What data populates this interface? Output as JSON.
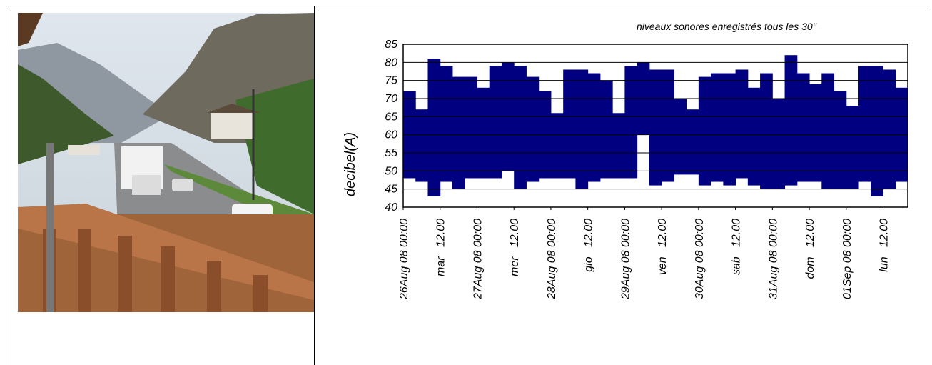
{
  "chart_data": {
    "type": "range_bar",
    "title": "niveaux sonores enregistrés tous les 30''",
    "y_label": "decibel(A)",
    "color": "#000080",
    "bins": [
      0,
      4,
      8,
      12,
      16,
      20,
      24,
      28,
      32,
      36,
      40,
      44,
      48,
      52,
      56,
      60,
      64,
      68,
      72,
      76,
      80,
      84,
      88,
      92,
      96,
      100,
      104,
      108,
      112,
      116,
      120,
      124,
      128,
      132,
      136,
      140,
      144,
      148,
      152,
      156,
      160,
      164
    ],
    "low": [
      48,
      47,
      43,
      47,
      45,
      48,
      48,
      48,
      50,
      45,
      47,
      48,
      48,
      48,
      45,
      47,
      48,
      48,
      48,
      60,
      46,
      47,
      49,
      49,
      46,
      47,
      46,
      48,
      46,
      45,
      45,
      46,
      47,
      47,
      45,
      45,
      45,
      47,
      43,
      45,
      47
    ],
    "high": [
      72,
      67,
      81,
      79,
      76,
      76,
      73,
      79,
      80,
      79,
      76,
      72,
      66,
      78,
      78,
      77,
      75,
      66,
      79,
      80,
      78,
      78,
      70,
      67,
      76,
      77,
      77,
      78,
      73,
      77,
      70,
      82,
      77,
      74,
      77,
      72,
      68,
      79,
      79,
      78,
      73
    ],
    "xlim": [
      0,
      164
    ],
    "xticks": [
      {
        "value": 0,
        "label": "26Aug 08 00:00"
      },
      {
        "value": 12,
        "label": "mar   12.00"
      },
      {
        "value": 24,
        "label": "27Aug 08 00:00"
      },
      {
        "value": 36,
        "label": "mer   12.00"
      },
      {
        "value": 48,
        "label": "28Aug 08 00:00"
      },
      {
        "value": 60,
        "label": "gio   12.00"
      },
      {
        "value": 72,
        "label": "29Aug 08 00:00"
      },
      {
        "value": 84,
        "label": "ven   12.00"
      },
      {
        "value": 96,
        "label": "30Aug 08 00:00"
      },
      {
        "value": 108,
        "label": "sab   12.00"
      },
      {
        "value": 120,
        "label": "31Aug 08 00:00"
      },
      {
        "value": 132,
        "label": "dom   12.00"
      },
      {
        "value": 144,
        "label": "01Sep 08 00:00"
      },
      {
        "value": 156,
        "label": "lun   12.00"
      }
    ],
    "ylim": [
      40,
      85
    ],
    "yticks": [
      40,
      45,
      50,
      55,
      60,
      65,
      70,
      75,
      80,
      85
    ],
    "grid": true
  }
}
